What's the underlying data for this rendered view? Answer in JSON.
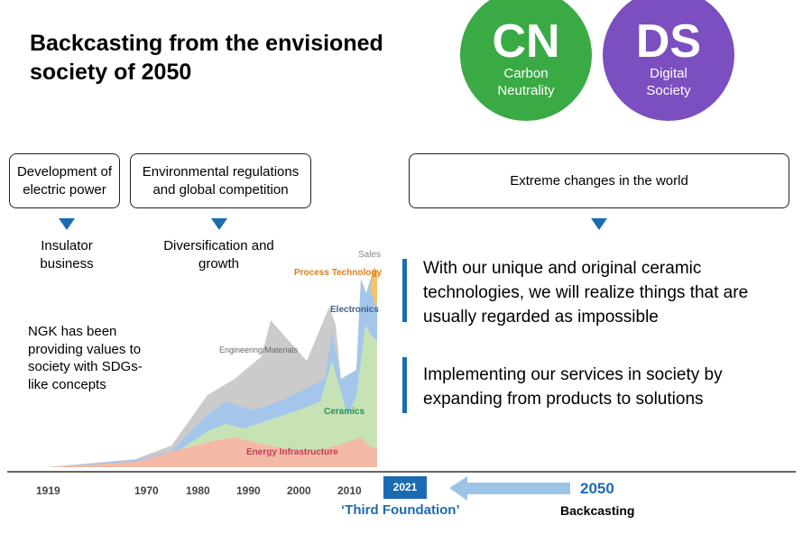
{
  "title": "Backcasting from the envisioned society of 2050",
  "circles": [
    {
      "abbr": "CN",
      "line1": "Carbon",
      "line2": "Neutrality",
      "color": "#3aaa44"
    },
    {
      "abbr": "DS",
      "line1": "Digital",
      "line2": "Society",
      "color": "#7b4fbf"
    }
  ],
  "boxes": {
    "electric_power": "Development of electric power",
    "environmental": "Environmental regulations and global competition",
    "extreme_changes": "Extreme changes in the world"
  },
  "phases": {
    "insulator": "Insulator business",
    "diversification": "Diversification and growth"
  },
  "ngk_text": "NGK has been providing values to society with SDGs-like concepts",
  "statements": [
    "With our unique and original ceramic technologies, we will realize things that are usually regarded as impossible",
    "Implementing our services in society by expanding from products to solutions"
  ],
  "chart_labels": {
    "sales": "Sales",
    "process": "Process Technology",
    "electronics": "Electronics",
    "engineering": "Engineering/Materials",
    "ceramics": "Ceramics",
    "energy": "Energy Infrastructure"
  },
  "chart_colors": {
    "energy": "#f4b9a6",
    "ceramics": "#c7e3b6",
    "electronics": "#a3c6ea",
    "engineering": "#cbcbcb",
    "process": "#f5c36b"
  },
  "timeline": {
    "years": [
      "1919",
      "1970",
      "1980",
      "1990",
      "2000",
      "2010"
    ],
    "current_year": "2021",
    "third_foundation": "‘Third Foundation’",
    "target_year": "2050",
    "backcasting": "Backcasting"
  }
}
